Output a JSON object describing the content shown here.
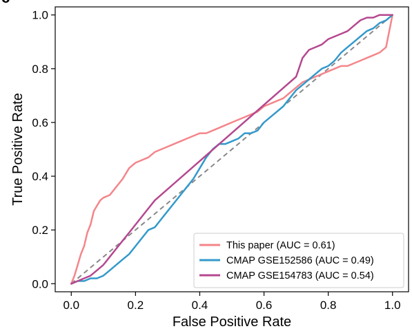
{
  "panel_label": "c",
  "chart_data": {
    "type": "line",
    "title": "",
    "xlabel": "False Positive Rate",
    "ylabel": "True Positive Rate",
    "xlim": [
      -0.05,
      1.05
    ],
    "ylim": [
      -0.03,
      1.03
    ],
    "xticks": [
      0.0,
      0.2,
      0.4,
      0.6,
      0.8,
      1.0
    ],
    "yticks": [
      0.0,
      0.2,
      0.4,
      0.6,
      0.8,
      1.0
    ],
    "xtick_labels": [
      "0.0",
      "0.2",
      "0.4",
      "0.6",
      "0.8",
      "1.0"
    ],
    "ytick_labels": [
      "0.0",
      "0.2",
      "0.4",
      "0.6",
      "0.8",
      "1.0"
    ],
    "grid": false,
    "legend_position": "lower right",
    "reference_line": {
      "x": [
        0,
        1
      ],
      "y": [
        0,
        1
      ],
      "style": "dashed",
      "color": "#888888"
    },
    "series": [
      {
        "name": "This paper (AUC = 0.61)",
        "color": "#f4858a",
        "x": [
          0.0,
          0.01,
          0.02,
          0.03,
          0.04,
          0.05,
          0.06,
          0.07,
          0.08,
          0.09,
          0.1,
          0.12,
          0.14,
          0.16,
          0.18,
          0.2,
          0.22,
          0.24,
          0.26,
          0.28,
          0.3,
          0.32,
          0.34,
          0.36,
          0.38,
          0.4,
          0.42,
          0.44,
          0.46,
          0.48,
          0.5,
          0.52,
          0.54,
          0.56,
          0.58,
          0.6,
          0.62,
          0.64,
          0.66,
          0.68,
          0.7,
          0.72,
          0.74,
          0.76,
          0.78,
          0.8,
          0.82,
          0.84,
          0.86,
          0.88,
          0.9,
          0.92,
          0.94,
          0.96,
          0.98,
          1.0
        ],
        "y": [
          0.0,
          0.03,
          0.07,
          0.11,
          0.14,
          0.19,
          0.22,
          0.27,
          0.29,
          0.31,
          0.32,
          0.33,
          0.36,
          0.39,
          0.43,
          0.45,
          0.46,
          0.47,
          0.49,
          0.5,
          0.51,
          0.52,
          0.53,
          0.54,
          0.55,
          0.56,
          0.56,
          0.57,
          0.58,
          0.59,
          0.6,
          0.61,
          0.62,
          0.63,
          0.64,
          0.66,
          0.67,
          0.68,
          0.69,
          0.71,
          0.73,
          0.75,
          0.76,
          0.77,
          0.78,
          0.79,
          0.8,
          0.81,
          0.81,
          0.82,
          0.83,
          0.84,
          0.85,
          0.86,
          0.88,
          1.0
        ]
      },
      {
        "name": "CMAP GSE152586 (AUC = 0.49)",
        "color": "#3399cc",
        "x": [
          0.0,
          0.02,
          0.04,
          0.06,
          0.08,
          0.1,
          0.12,
          0.14,
          0.16,
          0.18,
          0.2,
          0.22,
          0.24,
          0.26,
          0.28,
          0.3,
          0.32,
          0.34,
          0.36,
          0.38,
          0.4,
          0.42,
          0.44,
          0.46,
          0.48,
          0.5,
          0.52,
          0.54,
          0.56,
          0.58,
          0.6,
          0.62,
          0.64,
          0.66,
          0.68,
          0.7,
          0.72,
          0.74,
          0.76,
          0.78,
          0.8,
          0.82,
          0.84,
          0.86,
          0.88,
          0.9,
          0.92,
          0.94,
          0.96,
          0.98,
          1.0
        ],
        "y": [
          0.0,
          0.01,
          0.01,
          0.02,
          0.02,
          0.03,
          0.05,
          0.07,
          0.09,
          0.11,
          0.14,
          0.17,
          0.2,
          0.21,
          0.24,
          0.27,
          0.3,
          0.33,
          0.36,
          0.39,
          0.43,
          0.47,
          0.5,
          0.52,
          0.52,
          0.53,
          0.54,
          0.56,
          0.56,
          0.57,
          0.6,
          0.62,
          0.64,
          0.66,
          0.69,
          0.72,
          0.74,
          0.76,
          0.78,
          0.8,
          0.81,
          0.83,
          0.86,
          0.88,
          0.9,
          0.92,
          0.94,
          0.95,
          0.97,
          0.98,
          1.0
        ]
      },
      {
        "name": "CMAP GSE154783 (AUC = 0.54)",
        "color": "#b5478f",
        "x": [
          0.0,
          0.02,
          0.04,
          0.06,
          0.08,
          0.1,
          0.12,
          0.14,
          0.16,
          0.18,
          0.2,
          0.22,
          0.24,
          0.26,
          0.7,
          0.72,
          0.74,
          0.76,
          0.78,
          0.8,
          0.82,
          0.84,
          0.86,
          0.88,
          0.9,
          0.92,
          0.94,
          0.96,
          0.98,
          1.0
        ],
        "y": [
          0.0,
          0.01,
          0.02,
          0.03,
          0.05,
          0.07,
          0.1,
          0.13,
          0.16,
          0.19,
          0.22,
          0.25,
          0.28,
          0.31,
          0.77,
          0.84,
          0.87,
          0.88,
          0.89,
          0.91,
          0.92,
          0.93,
          0.94,
          0.96,
          0.98,
          0.99,
          0.99,
          1.0,
          1.0,
          1.0
        ]
      }
    ]
  }
}
